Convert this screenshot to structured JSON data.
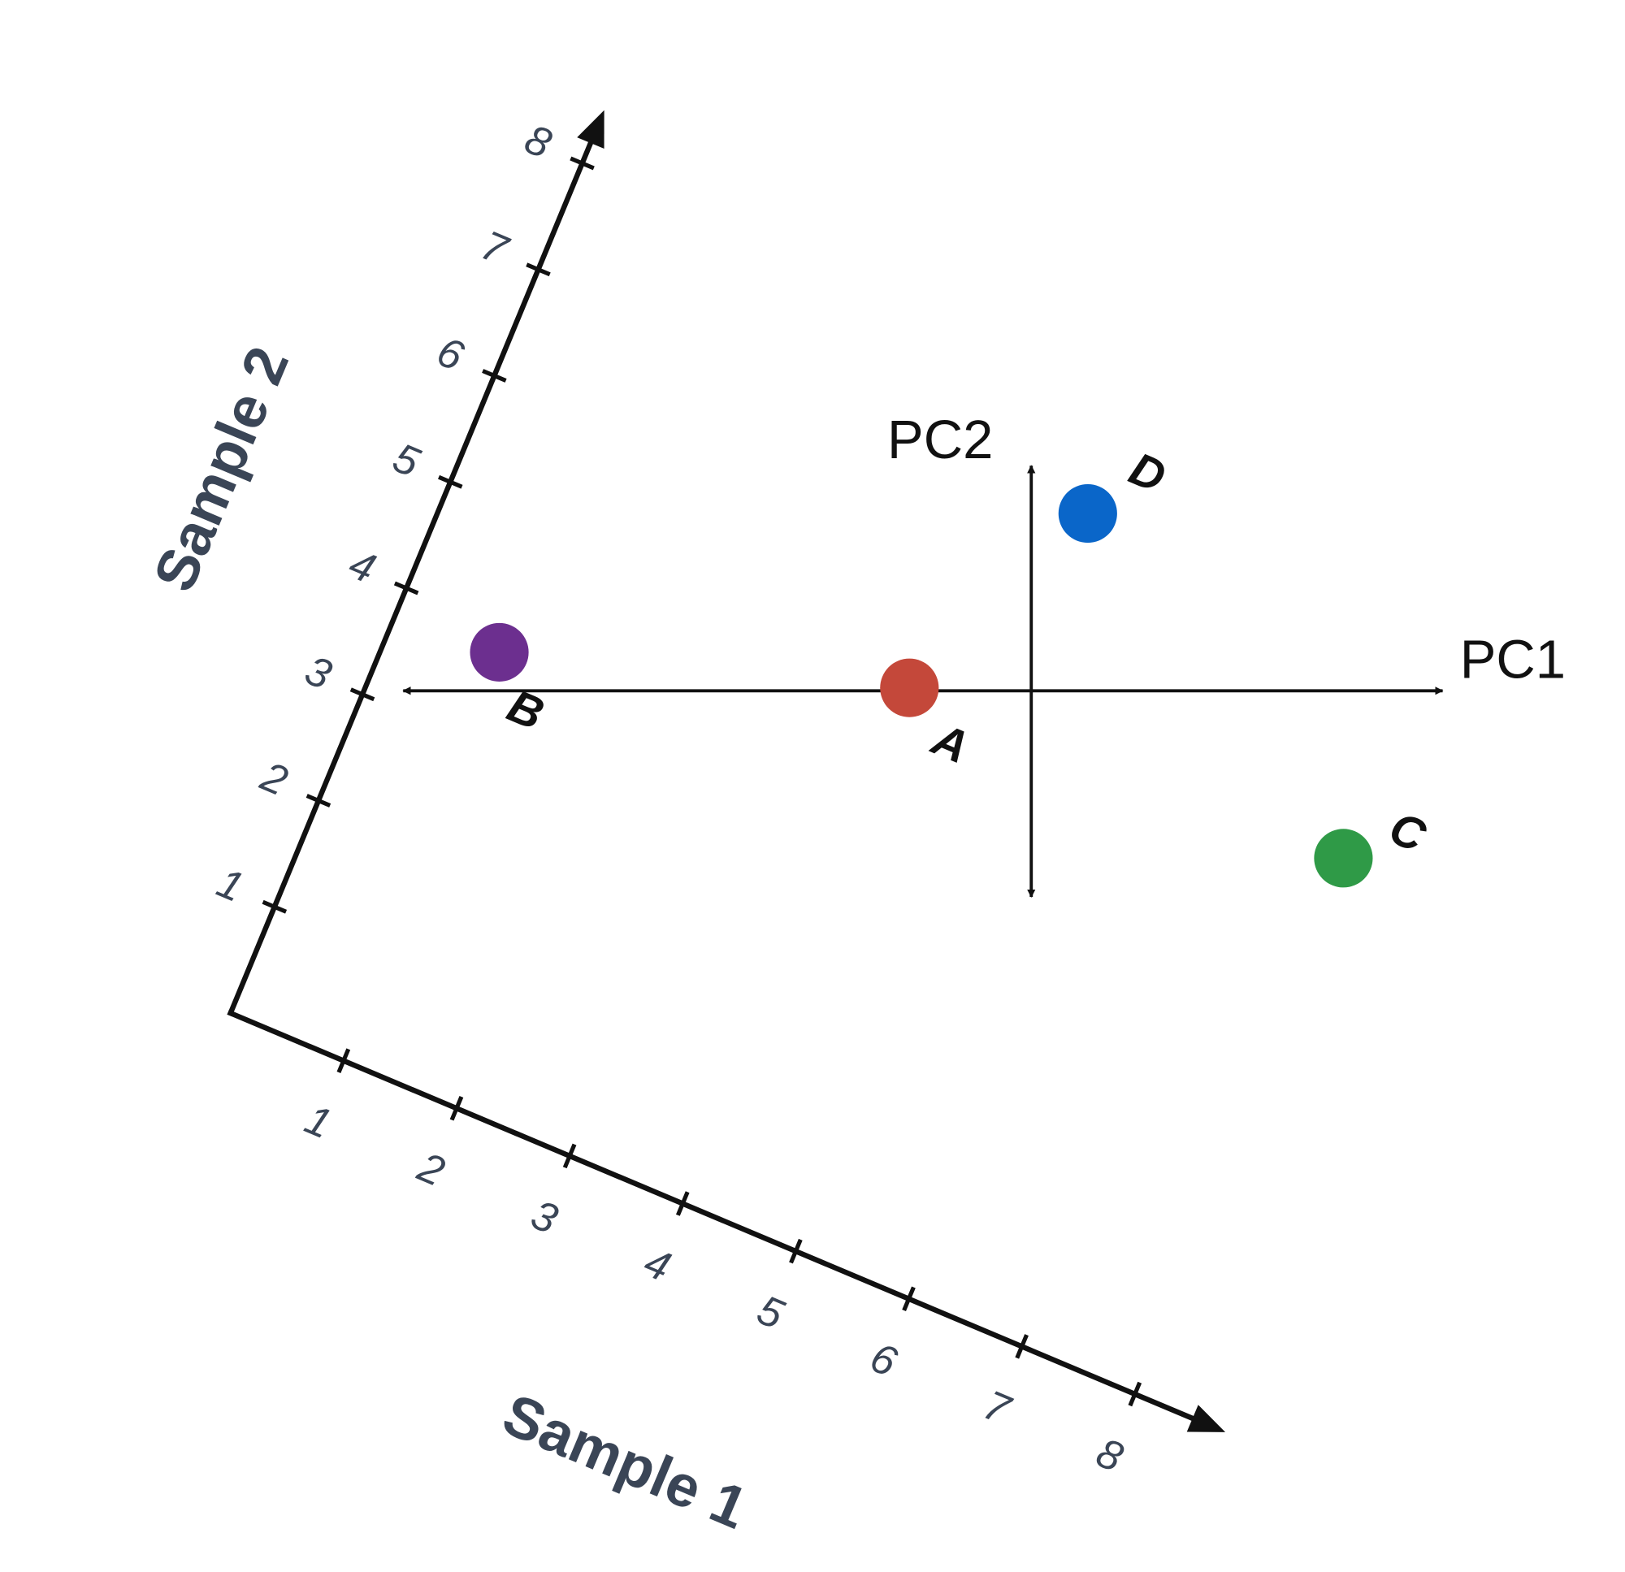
{
  "chart_data": {
    "type": "scatter",
    "xlabel": "Sample 1",
    "ylabel": "Sample 2",
    "xlim": [
      0,
      8.8
    ],
    "ylim": [
      0,
      8.5
    ],
    "xticks": [
      1,
      2,
      3,
      4,
      5,
      6,
      7,
      8
    ],
    "yticks": [
      1,
      2,
      3,
      4,
      5,
      6,
      7,
      8
    ],
    "x": [
      4.1,
      0.9,
      7.9,
      4.9
    ],
    "values": [
      4.9,
      3.8,
      5.0,
      6.9
    ],
    "point_labels": [
      "A",
      "B",
      "C",
      "D"
    ],
    "colors": [
      "#c4483a",
      "#6c2f8f",
      "#2f9a47",
      "#0a66c9"
    ],
    "annotations": [
      "PC1",
      "PC2"
    ]
  }
}
